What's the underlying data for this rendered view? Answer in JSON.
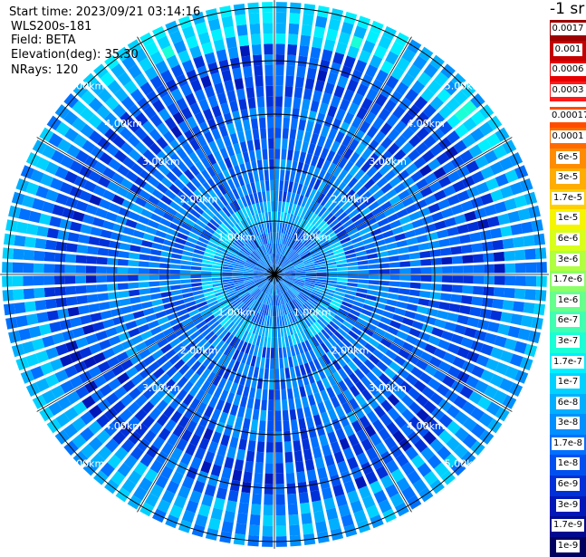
{
  "header": {
    "start_time": "Start time: 2023/09/21 03:14:16",
    "instrument": "WLS200s-181",
    "field": "Field: BETA",
    "elevation": "Elevation(deg): 35.30",
    "nrays": "NRays: 120"
  },
  "unit_label": "-1 sr",
  "colorbar": {
    "upper": [
      {
        "label": "0.0017",
        "color": "#9c0000"
      },
      {
        "label": "0.001",
        "color": "#c40000"
      },
      {
        "label": "0.0006",
        "color": "#e80000"
      },
      {
        "label": "0.0003",
        "color": "#ff1a1a"
      }
    ],
    "lower": [
      {
        "label": "0.00017",
        "color": "#ff4d00"
      },
      {
        "label": "0.0001",
        "color": "#ff6a00"
      },
      {
        "label": "6e-5",
        "color": "#ff8c00"
      },
      {
        "label": "3e-5",
        "color": "#ffad00"
      },
      {
        "label": "1.7e-5",
        "color": "#ffd000"
      },
      {
        "label": "1e-5",
        "color": "#f5f500"
      },
      {
        "label": "6e-6",
        "color": "#d8ff1a"
      },
      {
        "label": "3e-6",
        "color": "#b0ff40"
      },
      {
        "label": "1.7e-6",
        "color": "#8aff66"
      },
      {
        "label": "1e-6",
        "color": "#66ff8c"
      },
      {
        "label": "6e-7",
        "color": "#40ffb0"
      },
      {
        "label": "3e-7",
        "color": "#1affd6"
      },
      {
        "label": "1.7e-7",
        "color": "#00f0ff"
      },
      {
        "label": "1e-7",
        "color": "#00d2ff"
      },
      {
        "label": "6e-8",
        "color": "#00b0ff"
      },
      {
        "label": "3e-8",
        "color": "#0090ff"
      },
      {
        "label": "1.7e-8",
        "color": "#0070ff"
      },
      {
        "label": "1e-8",
        "color": "#0050f0"
      },
      {
        "label": "6e-9",
        "color": "#0030d8"
      },
      {
        "label": "3e-9",
        "color": "#0018b8"
      },
      {
        "label": "1.7e-9",
        "color": "#000a90"
      },
      {
        "label": "1e-9",
        "color": "#000060"
      }
    ]
  },
  "chart_data": {
    "type": "heatmap",
    "projection": "polar",
    "rays": 120,
    "range_rings": [
      "1.00km",
      "2.00km",
      "3.00km",
      "4.00km",
      "5.00km"
    ],
    "ring_distances_km": [
      1,
      2,
      3,
      4,
      5
    ],
    "spoke_count": 12,
    "field": "BETA",
    "elevation_deg": 35.3,
    "scale": "log",
    "value_range": [
      1e-09,
      0.0017
    ],
    "pattern": [
      {
        "range_km": [
          0,
          0.9
        ],
        "typical": "2e-8"
      },
      {
        "range_km": [
          0.9,
          1.4
        ],
        "typical": "6e-8"
      },
      {
        "range_km": [
          1.4,
          3.2
        ],
        "typical": "1.7e-8"
      },
      {
        "range_km": [
          3.2,
          4.3
        ],
        "typical": "1e-8"
      },
      {
        "range_km": [
          4.3,
          5.1
        ],
        "typical": "4e-8"
      },
      {
        "range_km": [
          5.1,
          5.6
        ],
        "typical": "1.7e-7"
      }
    ]
  }
}
